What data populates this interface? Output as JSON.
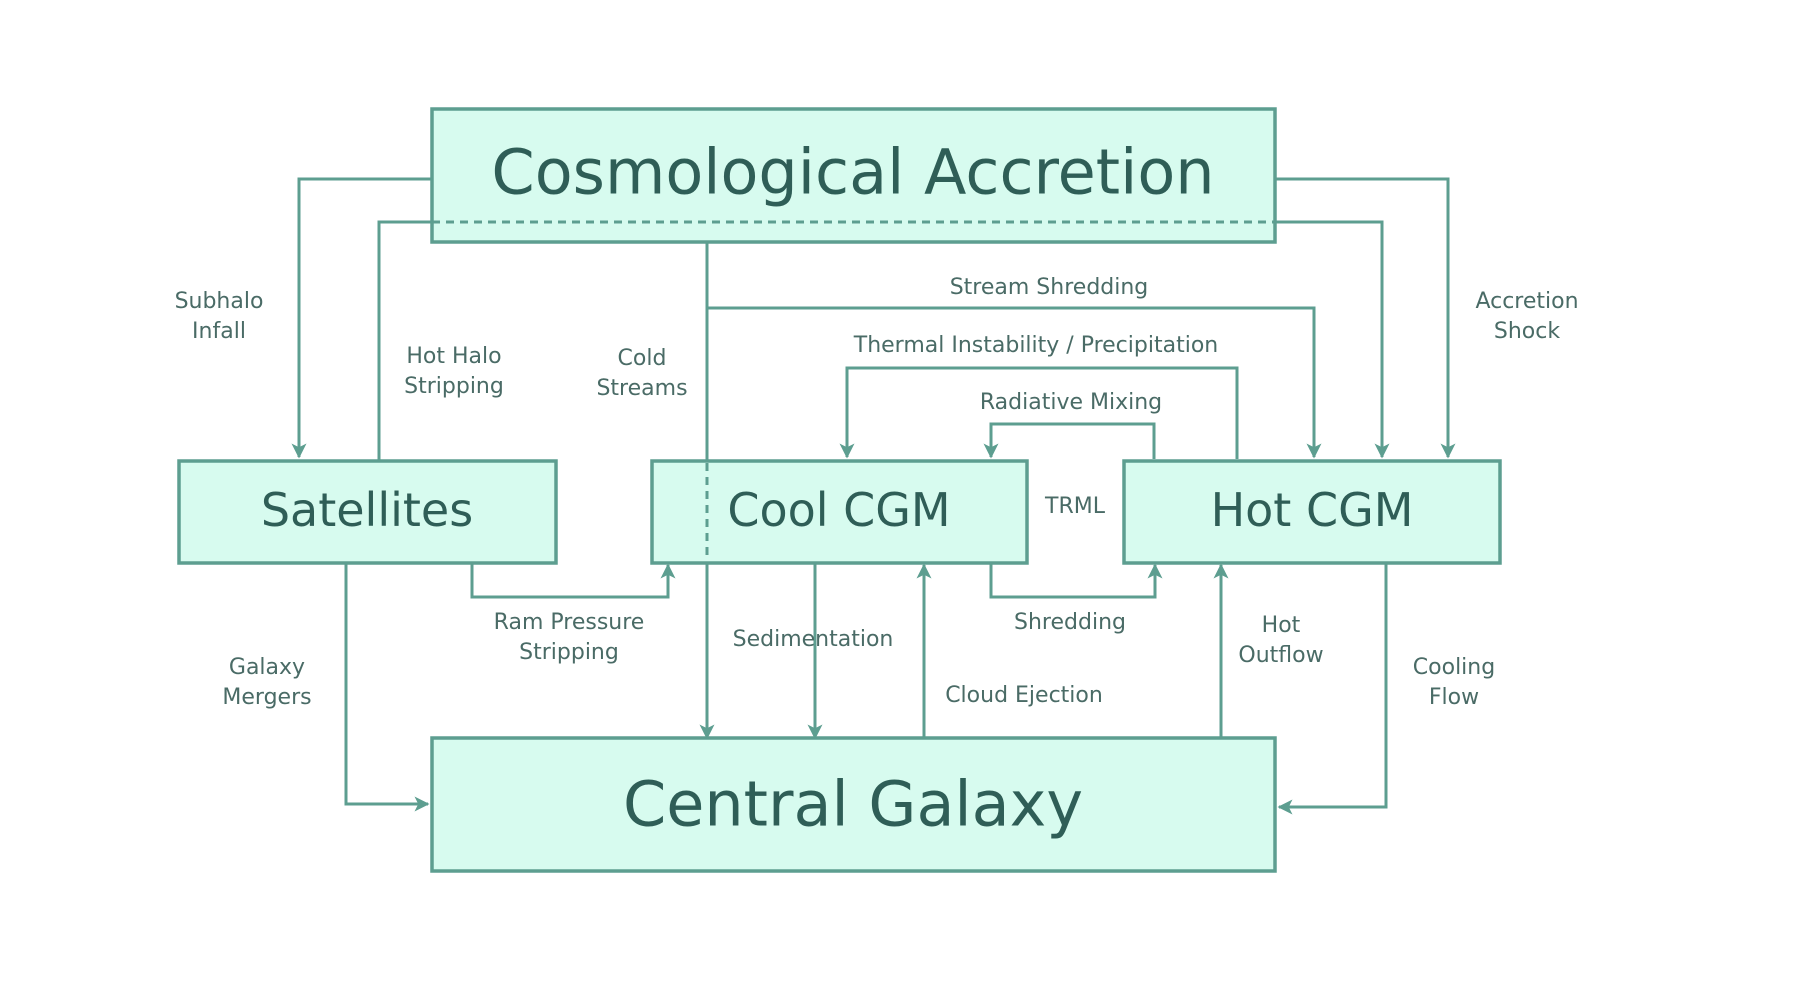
{
  "nodes": {
    "cosmological_accretion": "Cosmological Accretion",
    "satellites": "Satellites",
    "cool_cgm": "Cool CGM",
    "hot_cgm": "Hot CGM",
    "central_galaxy": "Central Galaxy"
  },
  "edges": {
    "subhalo_infall": [
      "Subhalo",
      "Infall"
    ],
    "hot_halo_stripping": [
      "Hot Halo",
      "Stripping"
    ],
    "cold_streams": [
      "Cold",
      "Streams"
    ],
    "stream_shredding": "Stream Shredding",
    "thermal_instability": "Thermal Instability / Precipitation",
    "radiative_mixing": "Radiative Mixing",
    "trml": "TRML",
    "accretion_shock": [
      "Accretion",
      "Shock"
    ],
    "ram_pressure_stripping": [
      "Ram Pressure",
      "Stripping"
    ],
    "sedimentation": "Sedimentation",
    "shredding": "Shredding",
    "hot_outflow": [
      "Hot",
      "Outflow"
    ],
    "galaxy_mergers": [
      "Galaxy",
      "Mergers"
    ],
    "cloud_ejection": "Cloud Ejection",
    "cooling_flow": [
      "Cooling",
      "Flow"
    ]
  },
  "colors": {
    "box_fill": "#d7fbef",
    "line": "#5d9e90",
    "node_text": "#2f5e57",
    "edge_text": "#4a6b66"
  }
}
